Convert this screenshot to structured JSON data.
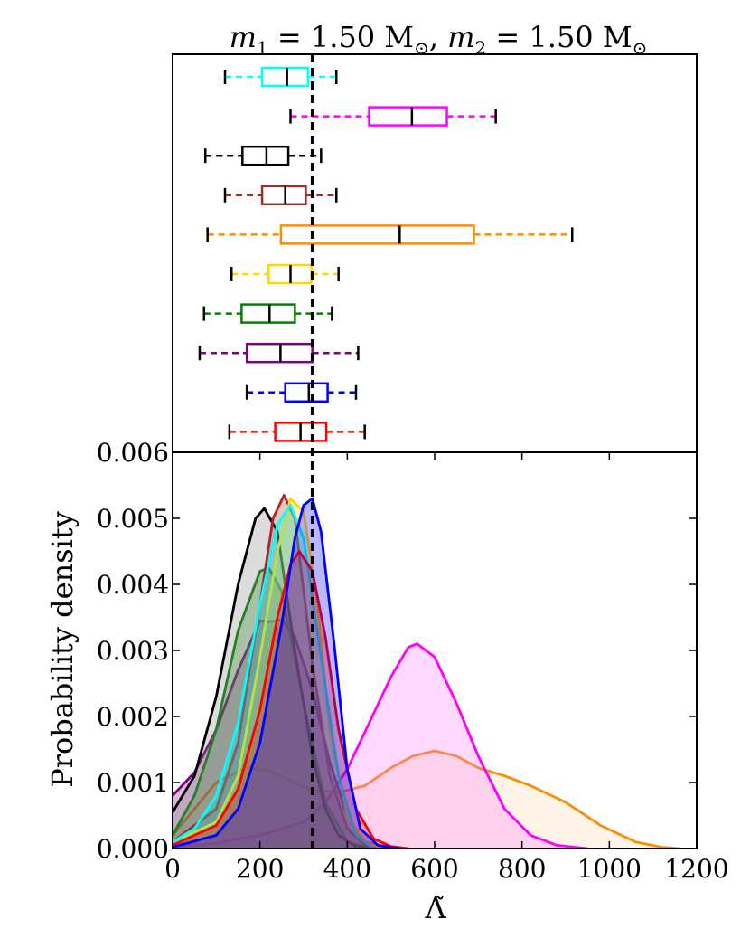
{
  "chart_data": {
    "title": "m₁ = 1.50 M⊙, m₂ = 1.50 M⊙",
    "xlabel": "Λ̃",
    "ylabel": "Probability density",
    "xlim": [
      0,
      1200
    ],
    "ylim": [
      0,
      0.006
    ],
    "xticks": [
      "0",
      "200",
      "400",
      "600",
      "800",
      "1000",
      "1200"
    ],
    "yticks": [
      "0.000",
      "0.001",
      "0.002",
      "0.003",
      "0.004",
      "0.005",
      "0.006"
    ],
    "reference_line_x": 320,
    "panels": [
      {
        "type": "box",
        "boxes": [
          {
            "color": "#00ffff",
            "whisker_low": 120,
            "q1": 205,
            "median": 262,
            "q3": 310,
            "whisker_high": 375
          },
          {
            "color": "#ff00ff",
            "whisker_low": 270,
            "q1": 450,
            "median": 548,
            "q3": 628,
            "whisker_high": 740
          },
          {
            "color": "#000000",
            "whisker_low": 75,
            "q1": 160,
            "median": 215,
            "q3": 265,
            "whisker_high": 340
          },
          {
            "color": "#a52a2a",
            "whisker_low": 120,
            "q1": 205,
            "median": 258,
            "q3": 305,
            "whisker_high": 375
          },
          {
            "color": "#ff8c00",
            "whisker_low": 80,
            "q1": 248,
            "median": 520,
            "q3": 690,
            "whisker_high": 915
          },
          {
            "color": "#ffd700",
            "whisker_low": 135,
            "q1": 220,
            "median": 270,
            "q3": 318,
            "whisker_high": 380
          },
          {
            "color": "#008000",
            "whisker_low": 72,
            "q1": 158,
            "median": 222,
            "q3": 280,
            "whisker_high": 365
          },
          {
            "color": "#800080",
            "whisker_low": 62,
            "q1": 170,
            "median": 247,
            "q3": 320,
            "whisker_high": 425
          },
          {
            "color": "#0000ff",
            "whisker_low": 170,
            "q1": 258,
            "median": 312,
            "q3": 355,
            "whisker_high": 420
          },
          {
            "color": "#ff0000",
            "whisker_low": 130,
            "q1": 235,
            "median": 293,
            "q3": 352,
            "whisker_high": 440
          }
        ]
      },
      {
        "type": "area",
        "series": [
          {
            "color": "#ff8c00",
            "fill": "#ffd8a8",
            "x": [
              0,
              50,
              100,
              170,
              220,
              280,
              320,
              380,
              440,
              500,
              550,
              600,
              650,
              700,
              760,
              820,
              900,
              980,
              1060,
              1120,
              1160
            ],
            "y": [
              0.0002,
              0.0006,
              0.001,
              0.00123,
              0.00118,
              0.001,
              0.00088,
              0.00085,
              0.00095,
              0.00122,
              0.0014,
              0.00148,
              0.0014,
              0.00122,
              0.0011,
              0.00095,
              0.0007,
              0.00035,
              0.0001,
              2e-05,
              0
            ]
          },
          {
            "color": "#ff00ff",
            "fill": "#ff77ff",
            "x": [
              0,
              100,
              200,
              300,
              350,
              400,
              450,
              500,
              540,
              560,
              600,
              650,
              700,
              760,
              820,
              880,
              950
            ],
            "y": [
              2e-05,
              8e-05,
              0.0002,
              0.0004,
              0.0007,
              0.0012,
              0.0019,
              0.0026,
              0.00305,
              0.0031,
              0.0029,
              0.0022,
              0.0014,
              0.0006,
              0.0002,
              5e-05,
              0
            ]
          },
          {
            "color": "#800080",
            "fill": "#800080",
            "x": [
              0,
              50,
              100,
              150,
              200,
              220,
              250,
              280,
              320,
              360,
              400,
              440,
              480,
              520
            ],
            "y": [
              0.0008,
              0.00115,
              0.0018,
              0.0027,
              0.00345,
              0.00343,
              0.00347,
              0.0032,
              0.0024,
              0.0013,
              0.0005,
              0.0001,
              2e-05,
              0
            ]
          },
          {
            "color": "#008000",
            "fill": "#008000",
            "x": [
              0,
              50,
              100,
              150,
              200,
              220,
              250,
              300,
              350,
              400,
              450
            ],
            "y": [
              0.0002,
              0.0008,
              0.0018,
              0.0033,
              0.0042,
              0.00425,
              0.0039,
              0.0022,
              0.0007,
              0.0001,
              0
            ]
          },
          {
            "color": "#000000",
            "fill": "#808080",
            "x": [
              0,
              50,
              100,
              150,
              190,
              210,
              240,
              280,
              320,
              350,
              380,
              420,
              460
            ],
            "y": [
              0.00055,
              0.0011,
              0.0023,
              0.004,
              0.005,
              0.00515,
              0.0048,
              0.003,
              0.0014,
              0.0006,
              0.0002,
              3e-05,
              0
            ]
          },
          {
            "color": "#a52a2a",
            "fill": "#a52a2a",
            "x": [
              0,
              100,
              150,
              200,
              230,
              255,
              280,
              320,
              360,
              400,
              440,
              480
            ],
            "y": [
              0.0001,
              0.0006,
              0.0016,
              0.0037,
              0.005,
              0.00535,
              0.005,
              0.0028,
              0.0011,
              0.0003,
              5e-05,
              0
            ]
          },
          {
            "color": "#ffd700",
            "fill": "#ffd700",
            "x": [
              0,
              100,
              150,
              200,
              240,
              270,
              300,
              330,
              360,
              400,
              440,
              480
            ],
            "y": [
              0.0001,
              0.0004,
              0.0011,
              0.0029,
              0.0045,
              0.0053,
              0.0051,
              0.0038,
              0.0018,
              0.0005,
              0.0001,
              0
            ]
          },
          {
            "color": "#00ffff",
            "fill": "#00ffff",
            "x": [
              0,
              50,
              100,
              150,
              200,
              240,
              270,
              300,
              340,
              380,
              420,
              460
            ],
            "y": [
              0.0001,
              0.0003,
              0.0008,
              0.0019,
              0.0037,
              0.0049,
              0.0052,
              0.0047,
              0.0029,
              0.0011,
              0.0002,
              0
            ]
          },
          {
            "color": "#ff0000",
            "fill": "#ff0000",
            "x": [
              0,
              100,
              150,
              200,
              240,
              270,
              290,
              320,
              350,
              380,
              420,
              460,
              500,
              540
            ],
            "y": [
              5e-05,
              0.00035,
              0.0009,
              0.0021,
              0.0035,
              0.0043,
              0.0045,
              0.0042,
              0.0032,
              0.0018,
              0.0006,
              0.00015,
              3e-05,
              0
            ]
          },
          {
            "color": "#0000ff",
            "fill": "#0000ff",
            "x": [
              0,
              100,
              150,
              200,
              250,
              280,
              300,
              320,
              340,
              370,
              400,
              430,
              470,
              520
            ],
            "y": [
              2e-05,
              0.0002,
              0.0006,
              0.0016,
              0.0034,
              0.0047,
              0.0052,
              0.0053,
              0.0048,
              0.0031,
              0.0012,
              0.0003,
              5e-05,
              0
            ]
          }
        ]
      }
    ]
  }
}
